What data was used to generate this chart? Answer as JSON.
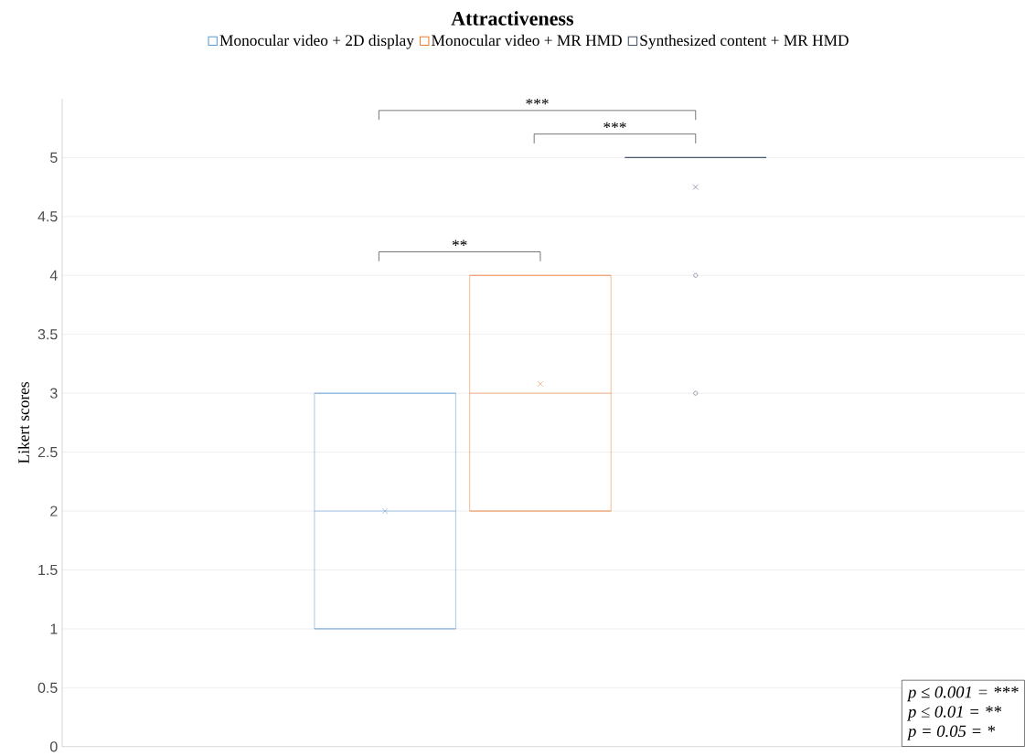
{
  "chart_data": {
    "type": "box",
    "title": "Attractiveness",
    "ylabel": "Likert scores",
    "categories": [
      null
    ],
    "series": [
      {
        "name": "Monocular video + 2D display",
        "color": "#5b9bd5",
        "boxes": [
          {
            "low": 1,
            "q1": 1,
            "median": 2,
            "q3": 3,
            "high": 3,
            "mean": 2
          }
        ]
      },
      {
        "name": "Monocular video + MR HMD",
        "color": "#ed7d31",
        "boxes": [
          {
            "low": 2,
            "q1": 2,
            "median": 3,
            "q3": 4,
            "high": 4,
            "mean": 3.08
          }
        ]
      },
      {
        "name": "Synthesized content + MR HMD",
        "color": "#44546a",
        "boxes": [
          {
            "low": 5,
            "q1": 5,
            "median": 5,
            "q3": 5,
            "high": 5,
            "mean": 4.75,
            "outliers": [
              4,
              3
            ]
          }
        ]
      }
    ],
    "ylim": [
      0,
      5.5
    ],
    "yticks": [
      0,
      0.5,
      1,
      1.5,
      2,
      2.5,
      3,
      3.5,
      4,
      4.5,
      5
    ],
    "grid": "y",
    "legend": "top",
    "annotations": [
      "***",
      "***",
      "**",
      "p ≤ 0.001 = ***",
      "p ≤ 0.01 = **",
      "p = 0.05 = *"
    ]
  }
}
